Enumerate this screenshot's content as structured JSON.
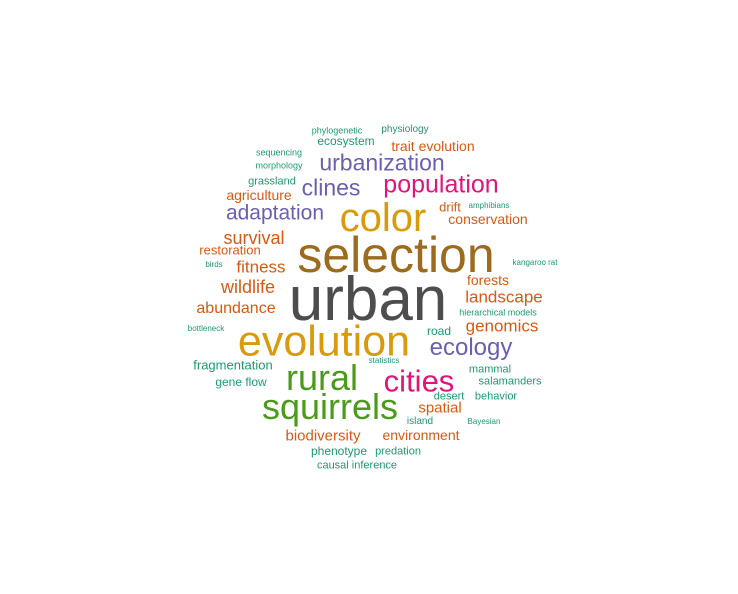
{
  "palette": {
    "gray": "#4d4d4d",
    "brown": "#9c6b1e",
    "gold": "#d99a0b",
    "orange": "#d65a12",
    "green": "#4b9a1b",
    "magenta": "#e0157a",
    "purple": "#6a5fb0",
    "teal": "#1b9a72"
  },
  "words": [
    {
      "text": "urban",
      "color": "gray",
      "rank": 1
    },
    {
      "text": "selection",
      "color": "brown",
      "rank": 2
    },
    {
      "text": "evolution",
      "color": "gold",
      "rank": 3
    },
    {
      "text": "color",
      "color": "gold",
      "rank": 4
    },
    {
      "text": "squirrels",
      "color": "green",
      "rank": 5
    },
    {
      "text": "rural",
      "color": "green",
      "rank": 6
    },
    {
      "text": "cities",
      "color": "magenta",
      "rank": 7
    },
    {
      "text": "population",
      "color": "magenta",
      "rank": 8
    },
    {
      "text": "ecology",
      "color": "purple",
      "rank": 9
    },
    {
      "text": "urbanization",
      "color": "purple",
      "rank": 10
    },
    {
      "text": "clines",
      "color": "purple",
      "rank": 11
    },
    {
      "text": "adaptation",
      "color": "purple",
      "rank": 12
    },
    {
      "text": "wildlife",
      "color": "orange",
      "rank": 13
    },
    {
      "text": "survival",
      "color": "orange",
      "rank": 14
    },
    {
      "text": "fitness",
      "color": "orange",
      "rank": 15
    },
    {
      "text": "landscape",
      "color": "orange",
      "rank": 16
    },
    {
      "text": "genomics",
      "color": "orange",
      "rank": 17
    },
    {
      "text": "abundance",
      "color": "orange",
      "rank": 18
    },
    {
      "text": "biodiversity",
      "color": "orange",
      "rank": 19
    },
    {
      "text": "spatial",
      "color": "orange",
      "rank": 20
    },
    {
      "text": "environment",
      "color": "orange",
      "rank": 21
    },
    {
      "text": "forests",
      "color": "orange",
      "rank": 22
    },
    {
      "text": "conservation",
      "color": "orange",
      "rank": 23
    },
    {
      "text": "trait evolution",
      "color": "orange",
      "rank": 24
    },
    {
      "text": "agriculture",
      "color": "orange",
      "rank": 25
    },
    {
      "text": "restoration",
      "color": "orange",
      "rank": 26
    },
    {
      "text": "drift",
      "color": "orange",
      "rank": 27
    },
    {
      "text": "ecosystem",
      "color": "teal",
      "rank": 28
    },
    {
      "text": "fragmentation",
      "color": "teal",
      "rank": 29
    },
    {
      "text": "gene flow",
      "color": "teal",
      "rank": 30
    },
    {
      "text": "phenotype",
      "color": "teal",
      "rank": 31
    },
    {
      "text": "predation",
      "color": "teal",
      "rank": 32
    },
    {
      "text": "causal inference",
      "color": "teal",
      "rank": 33
    },
    {
      "text": "road",
      "color": "teal",
      "rank": 34
    },
    {
      "text": "mammal",
      "color": "teal",
      "rank": 35
    },
    {
      "text": "salamanders",
      "color": "teal",
      "rank": 36
    },
    {
      "text": "desert",
      "color": "teal",
      "rank": 37
    },
    {
      "text": "behavior",
      "color": "teal",
      "rank": 38
    },
    {
      "text": "island",
      "color": "teal",
      "rank": 39
    },
    {
      "text": "grassland",
      "color": "teal",
      "rank": 40
    },
    {
      "text": "physiology",
      "color": "teal",
      "rank": 41
    },
    {
      "text": "phylogenetic",
      "color": "teal",
      "rank": 42
    },
    {
      "text": "morphology",
      "color": "teal",
      "rank": 43
    },
    {
      "text": "sequencing",
      "color": "teal",
      "rank": 44
    },
    {
      "text": "hierarchical models",
      "color": "teal",
      "rank": 45
    },
    {
      "text": "amphibians",
      "color": "teal",
      "rank": 46
    },
    {
      "text": "kangaroo rat",
      "color": "teal",
      "rank": 47
    },
    {
      "text": "birds",
      "color": "teal",
      "rank": 48
    },
    {
      "text": "bottleneck",
      "color": "teal",
      "rank": 49
    },
    {
      "text": "statistics",
      "color": "teal",
      "rank": 50
    },
    {
      "text": "Bayesian",
      "color": "teal",
      "rank": 51
    }
  ]
}
